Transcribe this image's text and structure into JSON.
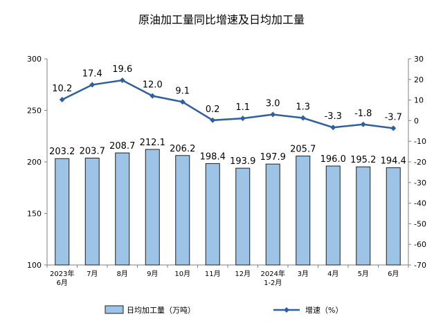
{
  "chart_data": {
    "type": "bar",
    "title": "原油加工量同比增速及日均加工量",
    "categories": [
      [
        "2023年",
        "6月"
      ],
      [
        "7月"
      ],
      [
        "8月"
      ],
      [
        "9月"
      ],
      [
        "10月"
      ],
      [
        "11月"
      ],
      [
        "12月"
      ],
      [
        "2024年",
        "1-2月"
      ],
      [
        "3月"
      ],
      [
        "4月"
      ],
      [
        "5月"
      ],
      [
        "6月"
      ]
    ],
    "series": [
      {
        "name": "日均加工量（万吨）",
        "type": "bar",
        "axis": "left",
        "color": "#9dc3e6",
        "values": [
          203.2,
          203.7,
          208.7,
          212.1,
          206.2,
          198.4,
          193.9,
          197.9,
          205.7,
          196.0,
          195.2,
          194.4
        ],
        "labels": [
          "203.2",
          "203.7",
          "208.7",
          "212.1",
          "206.2",
          "198.4",
          "193.9",
          "197.9",
          "205.7",
          "196.0",
          "195.2",
          "194.4"
        ]
      },
      {
        "name": "增速（%）",
        "type": "line",
        "axis": "right",
        "color": "#2f5f9e",
        "values": [
          10.2,
          17.4,
          19.6,
          12.0,
          9.1,
          0.2,
          1.1,
          3.0,
          1.3,
          -3.3,
          -1.8,
          -3.7
        ],
        "labels": [
          "10.2",
          "17.4",
          "19.6",
          "12.0",
          "9.1",
          "0.2",
          "1.1",
          "3.0",
          "1.3",
          "-3.3",
          "-1.8",
          "-3.7"
        ]
      }
    ],
    "y_left": {
      "min": 100,
      "max": 300,
      "ticks": [
        100,
        150,
        200,
        250,
        300
      ]
    },
    "y_right": {
      "min": -70,
      "max": 30,
      "ticks": [
        30,
        20,
        10,
        0,
        -10,
        -20,
        -30,
        -40,
        -50,
        -60,
        -70
      ]
    },
    "legend_position": "bottom",
    "grid": false
  }
}
